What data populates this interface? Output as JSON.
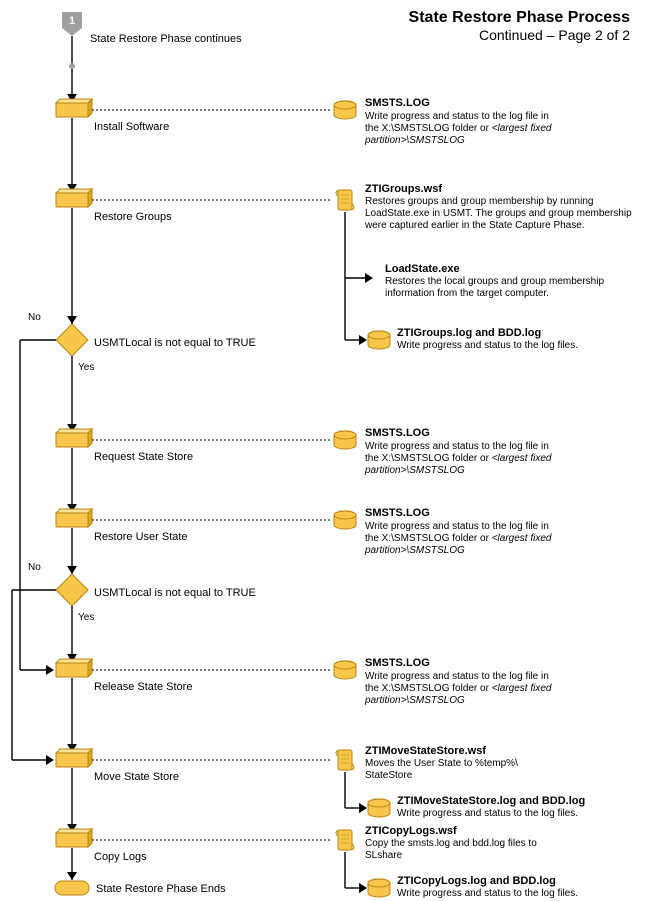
{
  "title": "State Restore Phase Process",
  "subtitle": "Continued – Page 2 of 2",
  "page_badge": "1",
  "page_top": "State Restore Phase continues",
  "page_end": "State Restore Phase Ends",
  "yes": "Yes",
  "no": "No",
  "colors": {
    "shape_fill": "#f7c64a",
    "shape_stroke": "#b8860b",
    "badge_fill": "#a0a0a0",
    "dot": "#a0a0a0",
    "line": "#000000",
    "text": "#000000"
  },
  "steps": {
    "install": "Install Software",
    "restoreGroups": "Restore Groups",
    "requestState": "Request State Store",
    "restoreUser": "Restore User State",
    "releaseState": "Release State Store",
    "moveState": "Move State Store",
    "copyLogs": "Copy Logs",
    "decision1": "USMTLocal is not equal to TRUE",
    "decision2": "USMTLocal is not equal to TRUE"
  },
  "d": {
    "smstsLog": {
      "title": "SMSTS.LOG",
      "l1": "Write progress and status to the log file in",
      "l2a": "the X:\\SMSTSLOG folder or ",
      "l2b": "<largest fixed",
      "l3": "partition>\\SMSTSLOG"
    },
    "ztiGroupsWsf": {
      "title": "ZTIGroups.wsf",
      "l1": "Restores groups and group membership by running",
      "l2": "LoadState.exe in USMT. The groups and group membership",
      "l3": "were captured earlier in the State Capture Phase."
    },
    "loadState": {
      "title": "LoadState.exe",
      "l1": "Restores the local groups and group membership",
      "l2": "information from the target computer."
    },
    "ztiGroupsLog": {
      "title": "ZTIGroups.log and BDD.log",
      "l1": "Write progress and status to the log files."
    },
    "ztiMoveWsf": {
      "title": "ZTIMoveStateStore.wsf",
      "l1": "Moves the User State to %temp%\\",
      "l2": "StateStore"
    },
    "ztiMoveLog": {
      "title": "ZTIMoveStateStore.log and BDD.log",
      "l1": "Write progress and status to the log files."
    },
    "ztiCopyWsf": {
      "title": "ZTICopyLogs.wsf",
      "l1": "Copy the smsts.log and bdd.log files to",
      "l2": "SLshare"
    },
    "ztiCopyLog": {
      "title": "ZTICopyLogs.log and BDD.log",
      "l1": "Write progress and status to the log files."
    }
  }
}
